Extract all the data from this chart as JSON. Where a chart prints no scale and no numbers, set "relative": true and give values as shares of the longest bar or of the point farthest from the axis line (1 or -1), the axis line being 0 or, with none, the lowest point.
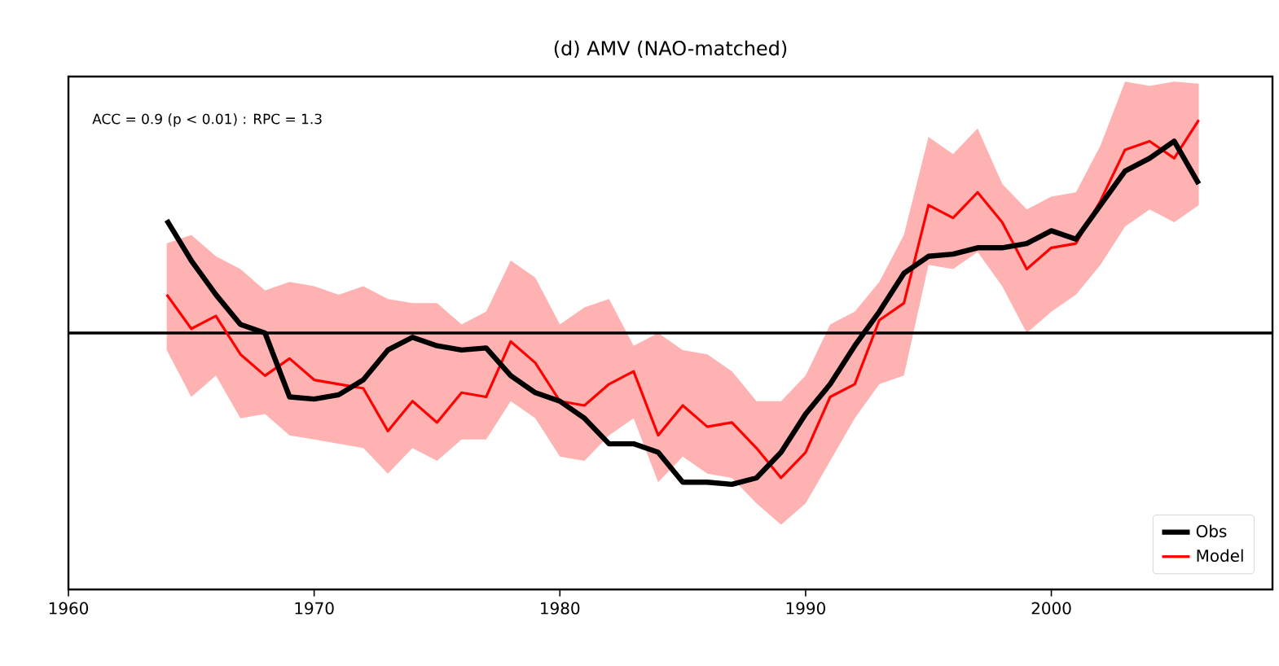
{
  "chart_data": {
    "type": "line",
    "title": "(d) AMV (NAO-matched)",
    "relative": true,
    "annotations": [
      "ACC = 0.9 (p < 0.01) :  RPC = 1.3"
    ],
    "x": [
      1964,
      1965,
      1966,
      1967,
      1968,
      1969,
      1970,
      1971,
      1972,
      1973,
      1974,
      1975,
      1976,
      1977,
      1978,
      1979,
      1980,
      1981,
      1982,
      1983,
      1984,
      1985,
      1986,
      1987,
      1988,
      1989,
      1990,
      1991,
      1992,
      1993,
      1994,
      1995,
      1996,
      1997,
      1998,
      1999,
      2000,
      2001,
      2002,
      2003,
      2004,
      2005,
      2006
    ],
    "series": [
      {
        "name": "Obs",
        "color": "#000000",
        "values": [
          0.53,
          0.34,
          0.18,
          0.04,
          0,
          -0.3,
          -0.31,
          -0.29,
          -0.22,
          -0.08,
          -0.02,
          -0.06,
          -0.08,
          -0.07,
          -0.2,
          -0.28,
          -0.32,
          -0.4,
          -0.52,
          -0.52,
          -0.56,
          -0.7,
          -0.7,
          -0.71,
          -0.68,
          -0.56,
          -0.38,
          -0.24,
          -0.06,
          0.1,
          0.28,
          0.36,
          0.37,
          0.4,
          0.4,
          0.42,
          0.48,
          0.44,
          0.6,
          0.76,
          0.82,
          0.9,
          0.7
        ]
      },
      {
        "name": "Model",
        "color": "#ff0000",
        "values": [
          0.18,
          0.02,
          0.08,
          -0.1,
          -0.2,
          -0.12,
          -0.22,
          -0.24,
          -0.26,
          -0.46,
          -0.32,
          -0.42,
          -0.28,
          -0.3,
          -0.04,
          -0.14,
          -0.32,
          -0.34,
          -0.24,
          -0.18,
          -0.48,
          -0.34,
          -0.44,
          -0.42,
          -0.54,
          -0.68,
          -0.56,
          -0.3,
          -0.24,
          0.06,
          0.14,
          0.6,
          0.54,
          0.66,
          0.52,
          0.3,
          0.4,
          0.42,
          0.62,
          0.86,
          0.9,
          0.82,
          1
        ],
        "lower": [
          -0.08,
          -0.3,
          -0.2,
          -0.4,
          -0.38,
          -0.48,
          -0.5,
          -0.52,
          -0.54,
          -0.66,
          -0.54,
          -0.6,
          -0.5,
          -0.5,
          -0.32,
          -0.4,
          -0.58,
          -0.6,
          -0.48,
          -0.4,
          -0.7,
          -0.58,
          -0.66,
          -0.68,
          -0.8,
          -0.9,
          -0.8,
          -0.6,
          -0.4,
          -0.24,
          -0.2,
          0.32,
          0.3,
          0.38,
          0.22,
          0,
          0.1,
          0.18,
          0.32,
          0.5,
          0.58,
          0.52,
          0.6
        ],
        "upper": [
          0.42,
          0.46,
          0.36,
          0.3,
          0.2,
          0.24,
          0.22,
          0.18,
          0.22,
          0.16,
          0.14,
          0.14,
          0.04,
          0.1,
          0.34,
          0.26,
          0.04,
          0.12,
          0.16,
          -0.06,
          0,
          -0.08,
          -0.1,
          -0.18,
          -0.32,
          -0.32,
          -0.2,
          0.04,
          0.1,
          0.24,
          0.46,
          0.92,
          0.84,
          0.96,
          0.7,
          0.58,
          0.64,
          0.66,
          0.88,
          1.18,
          1.16,
          1.18,
          1.17
        ]
      }
    ],
    "xlim": [
      1960,
      2009
    ],
    "xticks": [
      1960,
      1970,
      1980,
      1990,
      2000
    ],
    "ref_lines": [
      {
        "axis": "y",
        "value": 0,
        "color": "#000000"
      }
    ],
    "legend": "bottom right",
    "grid": false,
    "marker": "none",
    "line_style": "solid"
  }
}
